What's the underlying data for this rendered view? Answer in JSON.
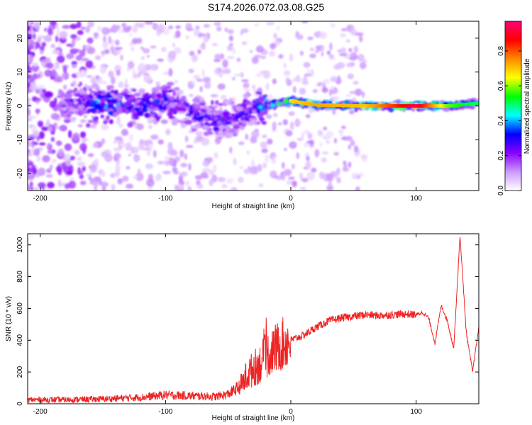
{
  "title": "S174.2026.072.03.08.G25",
  "colors": {
    "line": "#ee2222",
    "axis": "#000000",
    "ridge": "#ff2a2a"
  },
  "chart_data": [
    {
      "type": "heatmap",
      "title": "S174.2026.072.03.08.G25",
      "xlabel": "Height of straight line (km)",
      "ylabel": "Frequency (Hz)",
      "xlim": [
        -210,
        150
      ],
      "ylim": [
        -25,
        25
      ],
      "x_ticks": [
        -200,
        -100,
        0,
        100
      ],
      "y_ticks": [
        -20,
        -10,
        0,
        10,
        20
      ],
      "colorbar": {
        "label": "Normalized spectral amplitude",
        "range": [
          0,
          0.97
        ],
        "ticks": [
          "0.0",
          "0.2",
          "0.4",
          "0.6",
          "0.8"
        ],
        "colormap": [
          "#ffffff",
          "#cc99ff",
          "#8800ff",
          "#0000ff",
          "#00ffff",
          "#00ff00",
          "#ffff00",
          "#ff8800",
          "#ff0000",
          "#ff0077"
        ]
      },
      "ridge": [
        {
          "x": -180,
          "f": 1.0,
          "a": 0.25
        },
        {
          "x": -150,
          "f": 0.5,
          "a": 0.45
        },
        {
          "x": -120,
          "f": 0.0,
          "a": 0.4
        },
        {
          "x": -95,
          "f": 1.0,
          "a": 0.35
        },
        {
          "x": -80,
          "f": -2.0,
          "a": 0.3
        },
        {
          "x": -60,
          "f": -4.0,
          "a": 0.35
        },
        {
          "x": -40,
          "f": -3.0,
          "a": 0.3
        },
        {
          "x": -25,
          "f": 0.0,
          "a": 0.4
        },
        {
          "x": -15,
          "f": 0.5,
          "a": 0.6
        },
        {
          "x": 0,
          "f": 1.5,
          "a": 0.7
        },
        {
          "x": 20,
          "f": 0.3,
          "a": 0.75
        },
        {
          "x": 60,
          "f": 0.0,
          "a": 0.72
        },
        {
          "x": 100,
          "f": 0.0,
          "a": 0.95
        },
        {
          "x": 125,
          "f": 0.0,
          "a": 0.6
        },
        {
          "x": 150,
          "f": 0.8,
          "a": 0.5
        }
      ]
    },
    {
      "type": "line",
      "xlabel": "Height of straight line (km)",
      "ylabel": "SNR (10 * v/v)",
      "xlim": [
        -210,
        150
      ],
      "ylim": [
        0,
        1070
      ],
      "x_ticks": [
        -200,
        -100,
        0,
        100
      ],
      "y_ticks": [
        0,
        200,
        400,
        600,
        800,
        1000
      ],
      "series": [
        {
          "x": [
            -210,
            -180,
            -150,
            -120,
            -100,
            -80,
            -60,
            -50,
            -40,
            -35,
            -30,
            -25,
            -20,
            -15,
            -10,
            0,
            10,
            20,
            30,
            40,
            50,
            60,
            70,
            80,
            90,
            100,
            105,
            110,
            115,
            120,
            125,
            130,
            135,
            140,
            145,
            150
          ],
          "y": [
            25,
            25,
            30,
            40,
            55,
            50,
            45,
            60,
            110,
            180,
            220,
            250,
            300,
            330,
            360,
            400,
            430,
            480,
            520,
            540,
            550,
            560,
            555,
            560,
            565,
            560,
            575,
            540,
            380,
            620,
            520,
            350,
            1060,
            450,
            200,
            480
          ]
        }
      ]
    }
  ]
}
